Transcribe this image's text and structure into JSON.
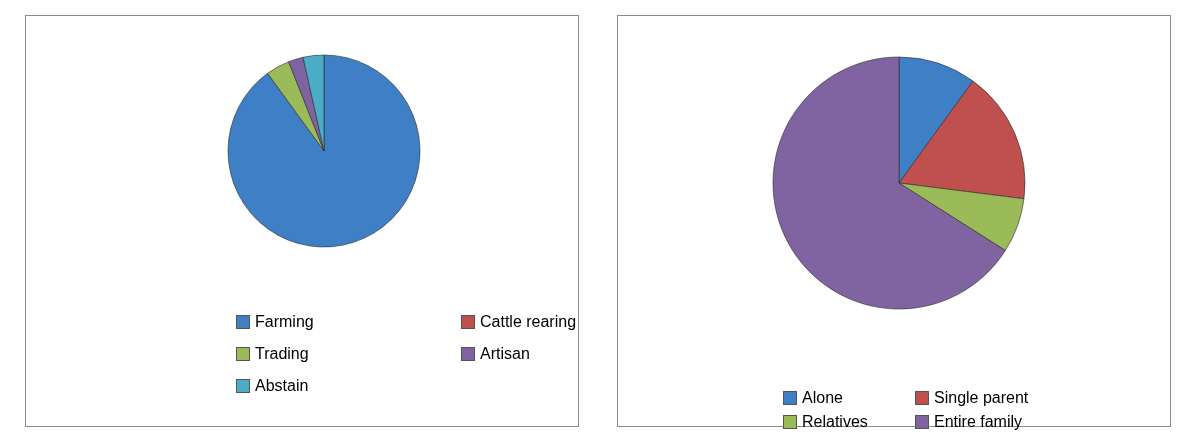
{
  "chart_data": [
    {
      "type": "pie",
      "categories": [
        "Farming",
        "Cattle rearing",
        "Trading",
        "Artisan",
        "Abstain"
      ],
      "values": [
        90,
        0,
        4,
        2.5,
        3.5
      ],
      "colors": [
        "#3f7fc6",
        "#c0504d",
        "#9bbb59",
        "#8064a2",
        "#4bacc6"
      ],
      "legend": "bottom"
    },
    {
      "type": "pie",
      "categories": [
        "Alone",
        "Single parent",
        "Relatives",
        "Entire family"
      ],
      "values": [
        10,
        17,
        7,
        66
      ],
      "colors": [
        "#3f7fc6",
        "#c0504d",
        "#9bbb59",
        "#8064a2"
      ],
      "legend": "bottom"
    }
  ]
}
